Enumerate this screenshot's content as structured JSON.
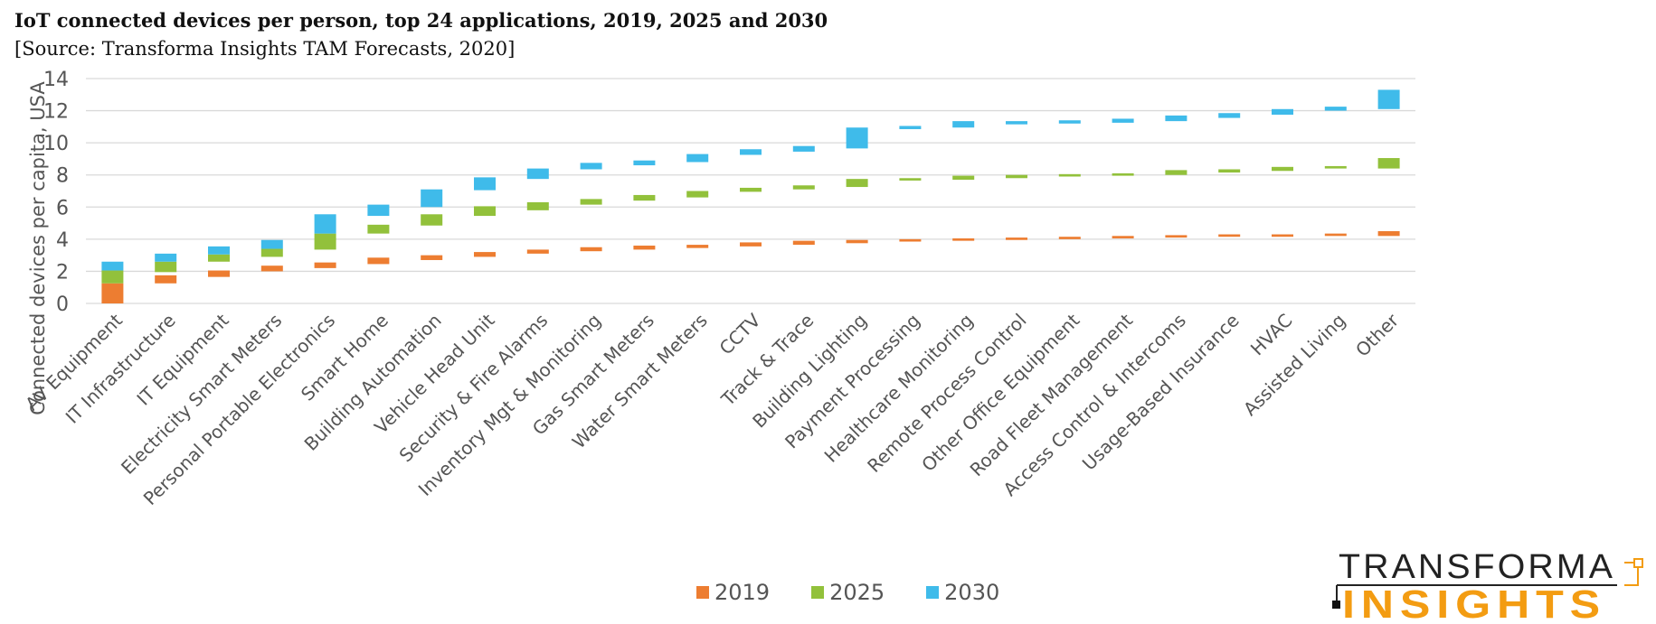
{
  "title": "IoT connected devices per person, top 24 applications, 2019, 2025 and 2030",
  "subtitle": "[Source: Transforma Insights TAM Forecasts, 2020]",
  "colors": {
    "y2019": "#ED7D31",
    "y2025": "#92C13B",
    "y2030": "#3FBBEA",
    "grid": "#D9D9D9"
  },
  "logo": {
    "line1": "TRANSFORMA",
    "line2": "INSIGHTS",
    "color_dark": "#222222",
    "color_accent": "#F39C12"
  },
  "chart_data": {
    "type": "bar",
    "subtype": "stacked-floating",
    "ylabel": "Connected devices per capita, USA",
    "ylim": [
      0,
      14
    ],
    "yticks": [
      0,
      2,
      4,
      6,
      8,
      10,
      12,
      14
    ],
    "grid": true,
    "legend_position": "bottom",
    "categories": [
      "AV Equipment",
      "IT Infrastructure",
      "IT Equipment",
      "Electricity Smart Meters",
      "Personal Portable Electronics",
      "Smart Home",
      "Building Automation",
      "Vehicle Head Unit",
      "Security & Fire Alarms",
      "Inventory Mgt & Monitoring",
      "Gas Smart Meters",
      "Water Smart Meters",
      "CCTV",
      "Track & Trace",
      "Building Lighting",
      "Payment Processing",
      "Healthcare Monitoring",
      "Remote Process Control",
      "Other Office Equipment",
      "Road Fleet Management",
      "Access Control & Intercoms",
      "Usage-Based Insurance",
      "HVAC",
      "Assisted Living",
      "Other"
    ],
    "series": [
      {
        "name": "2019",
        "low": [
          0.0,
          1.25,
          1.65,
          2.0,
          2.2,
          2.45,
          2.7,
          2.9,
          3.1,
          3.25,
          3.35,
          3.45,
          3.55,
          3.65,
          3.75,
          3.85,
          3.9,
          3.95,
          4.0,
          4.05,
          4.1,
          4.15,
          4.15,
          4.2,
          4.2
        ],
        "high": [
          1.25,
          1.75,
          2.05,
          2.35,
          2.55,
          2.85,
          3.0,
          3.2,
          3.35,
          3.5,
          3.6,
          3.65,
          3.8,
          3.9,
          3.95,
          4.0,
          4.05,
          4.1,
          4.15,
          4.2,
          4.25,
          4.3,
          4.3,
          4.35,
          4.5
        ]
      },
      {
        "name": "2025",
        "low": [
          1.25,
          1.95,
          2.6,
          2.9,
          3.35,
          4.35,
          4.85,
          5.45,
          5.8,
          6.15,
          6.4,
          6.6,
          6.95,
          7.1,
          7.25,
          7.65,
          7.7,
          7.8,
          7.9,
          7.95,
          8.0,
          8.15,
          8.25,
          8.4,
          8.4
        ],
        "high": [
          2.05,
          2.6,
          3.05,
          3.4,
          4.35,
          4.9,
          5.55,
          6.05,
          6.3,
          6.5,
          6.75,
          7.0,
          7.2,
          7.35,
          7.75,
          7.8,
          7.95,
          8.0,
          8.05,
          8.1,
          8.3,
          8.35,
          8.5,
          8.55,
          9.05
        ]
      },
      {
        "name": "2030",
        "low": [
          2.05,
          2.6,
          3.05,
          3.4,
          4.35,
          5.45,
          6.0,
          7.05,
          7.75,
          8.35,
          8.6,
          8.8,
          9.25,
          9.45,
          9.65,
          10.85,
          10.95,
          11.15,
          11.2,
          11.25,
          11.35,
          11.55,
          11.75,
          12.0,
          12.1
        ],
        "high": [
          2.6,
          3.1,
          3.55,
          3.95,
          5.55,
          6.15,
          7.1,
          7.85,
          8.4,
          8.75,
          8.9,
          9.3,
          9.6,
          9.8,
          10.95,
          11.05,
          11.35,
          11.35,
          11.4,
          11.5,
          11.7,
          11.85,
          12.1,
          12.25,
          13.3
        ]
      }
    ]
  }
}
